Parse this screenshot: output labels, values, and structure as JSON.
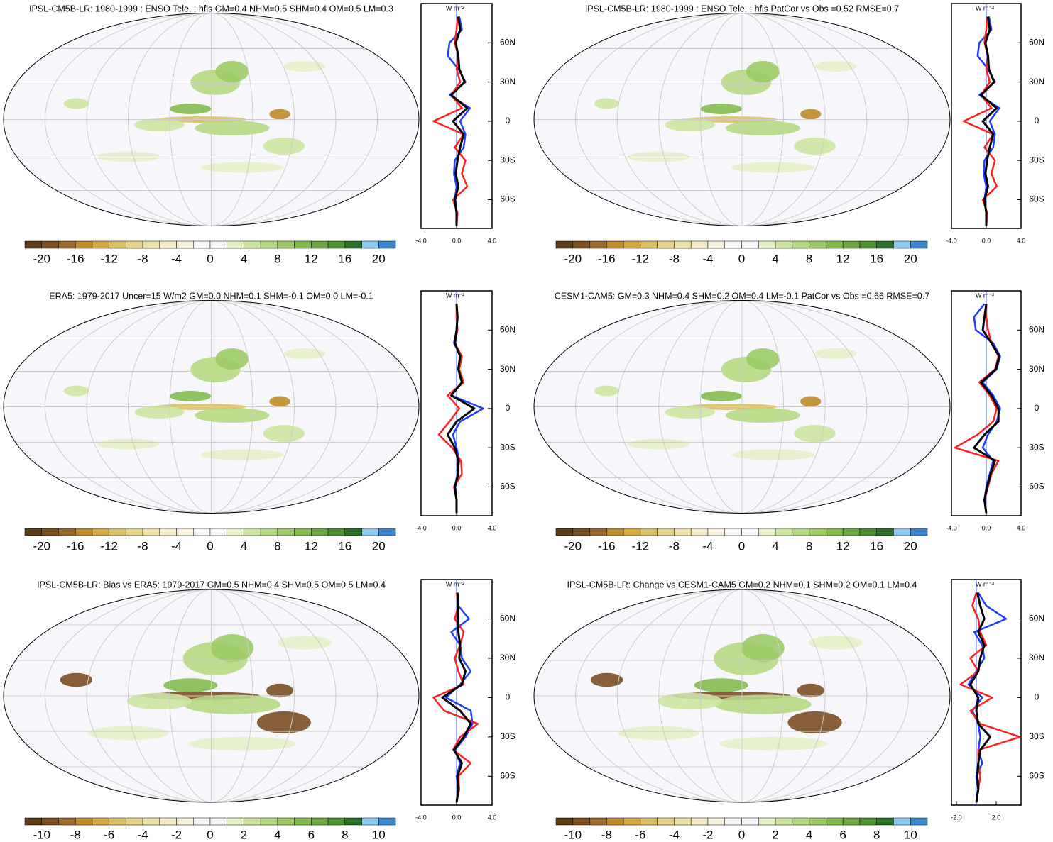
{
  "panels": [
    {
      "title": "IPSL-CM5B-LR: 1980-1999 : ENSO Tele. : hfls GM=0.4 NHM=0.5 SHM=0.4 OM=0.5 LM=0.3",
      "colorbar": {
        "colors": [
          "#5c3b17",
          "#7b4e22",
          "#9a6a2c",
          "#bf8b2b",
          "#d3a940",
          "#dcc066",
          "#e6d48c",
          "#ede2aa",
          "#f2ebc6",
          "#f5f1dd",
          "#f7f7fb",
          "#f7f7fb",
          "#e4f0c6",
          "#cde5a1",
          "#b5d882",
          "#9ccb66",
          "#83bb4f",
          "#69a740",
          "#4c9032",
          "#2d6e28",
          "#8ccbef",
          "#3a86cf"
        ],
        "lim": [
          -22,
          22
        ],
        "ticks": [
          -20,
          -16,
          -12,
          -8,
          -4,
          0,
          4,
          8,
          12,
          16,
          20
        ]
      },
      "zonal": {
        "unit": "W m⁻²",
        "xlim": [
          -4,
          4
        ],
        "xticks": [
          {
            "value": -4,
            "label": "-4.0"
          },
          {
            "value": 0,
            "label": "0.0"
          },
          {
            "value": 4,
            "label": "4.0"
          }
        ],
        "ylim": [
          -82,
          90
        ],
        "yticks": [
          {
            "value": -60,
            "label": "60S"
          },
          {
            "value": -30,
            "label": "30S"
          },
          {
            "value": 0,
            "label": "0"
          },
          {
            "value": 30,
            "label": "30N"
          },
          {
            "value": 60,
            "label": "60N"
          }
        ],
        "lat": [
          -80,
          -70,
          -60,
          -50,
          -40,
          -30,
          -20,
          -10,
          0,
          10,
          20,
          30,
          40,
          50,
          60,
          70,
          80
        ],
        "series": [
          {
            "color": "#1f3cff",
            "values": [
              0,
              0,
              -0.2,
              0,
              -0.3,
              -0.2,
              0.8,
              1.0,
              0.4,
              1.5,
              -0.8,
              1.0,
              0.2,
              -1.0,
              -0.8,
              0.6,
              0.3
            ]
          },
          {
            "color": "#ff2020",
            "values": [
              0,
              0.1,
              -0.4,
              1.2,
              0.6,
              1.0,
              -0.2,
              0.8,
              -2.6,
              0.6,
              -0.6,
              0.4,
              0,
              0.2,
              -0.2,
              0,
              0.1
            ]
          },
          {
            "color": "#000000",
            "values": [
              0,
              0,
              -0.2,
              0.2,
              -0.1,
              0.1,
              0.4,
              0.8,
              -0.4,
              1.2,
              -0.6,
              0.9,
              0.3,
              0.2,
              -0.1,
              0.4,
              0.2
            ]
          }
        ]
      }
    },
    {
      "title": "IPSL-CM5B-LR: 1980-1999 : ENSO Tele. : hfls PatCor vs Obs =0.52 RMSE=0.7",
      "colorbar": {
        "colors": [
          "#5c3b17",
          "#7b4e22",
          "#9a6a2c",
          "#bf8b2b",
          "#d3a940",
          "#dcc066",
          "#e6d48c",
          "#ede2aa",
          "#f2ebc6",
          "#f5f1dd",
          "#f7f7fb",
          "#f7f7fb",
          "#e4f0c6",
          "#cde5a1",
          "#b5d882",
          "#9ccb66",
          "#83bb4f",
          "#69a740",
          "#4c9032",
          "#2d6e28",
          "#8ccbef",
          "#3a86cf"
        ],
        "lim": [
          -22,
          22
        ],
        "ticks": [
          -20,
          -16,
          -12,
          -8,
          -4,
          0,
          4,
          8,
          12,
          16,
          20
        ]
      },
      "zonal": {
        "unit": "W m⁻²",
        "xlim": [
          -4,
          4
        ],
        "xticks": [
          {
            "value": -4,
            "label": "-4.0"
          },
          {
            "value": 0,
            "label": "0.0"
          },
          {
            "value": 4,
            "label": "4.0"
          }
        ],
        "ylim": [
          -82,
          90
        ],
        "yticks": [
          {
            "value": -60,
            "label": "60S"
          },
          {
            "value": -30,
            "label": "30S"
          },
          {
            "value": 0,
            "label": "0"
          },
          {
            "value": 30,
            "label": "30N"
          },
          {
            "value": 60,
            "label": "60N"
          }
        ],
        "lat": [
          -80,
          -70,
          -60,
          -50,
          -40,
          -30,
          -20,
          -10,
          0,
          10,
          20,
          30,
          40,
          50,
          60,
          70,
          80
        ],
        "series": [
          {
            "color": "#1f3cff",
            "values": [
              0,
              0,
              -0.2,
              0,
              -0.3,
              -0.2,
              0.8,
              1.0,
              0.4,
              1.5,
              -0.8,
              1.0,
              0.2,
              -1.0,
              -0.8,
              0.6,
              0.3
            ]
          },
          {
            "color": "#ff2020",
            "values": [
              0,
              0.1,
              -0.4,
              1.2,
              0.6,
              1.0,
              -0.2,
              0.8,
              -2.6,
              0.6,
              -0.6,
              0.4,
              0,
              0.2,
              -0.2,
              0,
              0.1
            ]
          },
          {
            "color": "#000000",
            "values": [
              0,
              0,
              -0.2,
              0.2,
              -0.1,
              0.1,
              0.4,
              0.8,
              -0.4,
              1.2,
              -0.6,
              0.9,
              0.3,
              0.2,
              -0.1,
              0.4,
              0.2
            ]
          }
        ]
      }
    },
    {
      "title": "ERA5: 1979-2017 Uncer=15 W/m2 GM=0.0 NHM=0.1 SHM=-0.1 OM=0.0 LM=-0.1",
      "colorbar": {
        "colors": [
          "#5c3b17",
          "#7b4e22",
          "#9a6a2c",
          "#bf8b2b",
          "#d3a940",
          "#dcc066",
          "#e6d48c",
          "#ede2aa",
          "#f2ebc6",
          "#f5f1dd",
          "#f7f7fb",
          "#f7f7fb",
          "#e4f0c6",
          "#cde5a1",
          "#b5d882",
          "#9ccb66",
          "#83bb4f",
          "#69a740",
          "#4c9032",
          "#2d6e28",
          "#8ccbef",
          "#3a86cf"
        ],
        "lim": [
          -22,
          22
        ],
        "ticks": [
          -20,
          -16,
          -12,
          -8,
          -4,
          0,
          4,
          8,
          12,
          16,
          20
        ]
      },
      "zonal": {
        "unit": "W m⁻²",
        "xlim": [
          -4,
          4
        ],
        "xticks": [
          {
            "value": -4,
            "label": "-4.0"
          },
          {
            "value": 0,
            "label": "0.0"
          },
          {
            "value": 4,
            "label": "4.0"
          }
        ],
        "ylim": [
          -82,
          90
        ],
        "yticks": [
          {
            "value": -60,
            "label": "60S"
          },
          {
            "value": -30,
            "label": "30S"
          },
          {
            "value": 0,
            "label": "0"
          },
          {
            "value": 30,
            "label": "30N"
          },
          {
            "value": 60,
            "label": "60N"
          }
        ],
        "lat": [
          -80,
          -70,
          -60,
          -50,
          -40,
          -30,
          -20,
          -10,
          0,
          10,
          20,
          30,
          40,
          50,
          60,
          70,
          80
        ],
        "series": [
          {
            "color": "#1f3cff",
            "values": [
              0,
              0,
              -0.2,
              0.1,
              0.3,
              0,
              -0.4,
              0.4,
              3.0,
              -0.6,
              0.6,
              0.2,
              0.5,
              -0.3,
              0,
              0.1,
              0
            ]
          },
          {
            "color": "#ff2020",
            "values": [
              0,
              0,
              -0.3,
              0.6,
              0.5,
              -0.5,
              -2.0,
              -0.8,
              0.3,
              -1.0,
              0.8,
              0.3,
              0.6,
              -0.2,
              0.1,
              0,
              0
            ]
          },
          {
            "color": "#000000",
            "values": [
              0,
              0,
              -0.2,
              0.2,
              0.2,
              -0.2,
              -1.0,
              0,
              2.0,
              -0.6,
              0.6,
              0.2,
              0.4,
              -0.2,
              0,
              0.1,
              0
            ]
          }
        ]
      }
    },
    {
      "title": "CESM1-CAM5: GM=0.3 NHM=0.4 SHM=0.2 OM=0.4 LM=-0.1 PatCor vs Obs =0.66 RMSE=0.7",
      "colorbar": {
        "colors": [
          "#5c3b17",
          "#7b4e22",
          "#9a6a2c",
          "#bf8b2b",
          "#d3a940",
          "#dcc066",
          "#e6d48c",
          "#ede2aa",
          "#f2ebc6",
          "#f5f1dd",
          "#f7f7fb",
          "#f7f7fb",
          "#e4f0c6",
          "#cde5a1",
          "#b5d882",
          "#9ccb66",
          "#83bb4f",
          "#69a740",
          "#4c9032",
          "#2d6e28",
          "#8ccbef",
          "#3a86cf"
        ],
        "lim": [
          -22,
          22
        ],
        "ticks": [
          -20,
          -16,
          -12,
          -8,
          -4,
          0,
          4,
          8,
          12,
          16,
          20
        ]
      },
      "zonal": {
        "unit": "W m⁻²",
        "xlim": [
          -4,
          4
        ],
        "xticks": [
          {
            "value": -4,
            "label": "-4.0"
          },
          {
            "value": 0,
            "label": "0.0"
          },
          {
            "value": 4,
            "label": "4.0"
          }
        ],
        "ylim": [
          -82,
          90
        ],
        "yticks": [
          {
            "value": -60,
            "label": "60S"
          },
          {
            "value": -30,
            "label": "30S"
          },
          {
            "value": 0,
            "label": "0"
          },
          {
            "value": 30,
            "label": "30N"
          },
          {
            "value": 60,
            "label": "60N"
          }
        ],
        "lat": [
          -80,
          -70,
          -60,
          -50,
          -40,
          -30,
          -20,
          -10,
          0,
          10,
          20,
          30,
          40,
          50,
          60,
          70,
          80
        ],
        "series": [
          {
            "color": "#1f3cff",
            "values": [
              0,
              -0.2,
              0,
              0.4,
              0.8,
              -0.4,
              0.2,
              1.2,
              1.6,
              0.8,
              -0.4,
              1.2,
              1.6,
              0.8,
              -1.2,
              -1.4,
              -0.2
            ]
          },
          {
            "color": "#ff2020",
            "values": [
              0,
              -0.2,
              0.2,
              0.6,
              1.4,
              -3.6,
              -1.0,
              0.8,
              1.2,
              0.4,
              -0.8,
              1.0,
              1.4,
              0.6,
              0.2,
              0,
              0
            ]
          },
          {
            "color": "#000000",
            "values": [
              0,
              -0.2,
              0.1,
              0.5,
              1.0,
              -1.4,
              -0.2,
              1.4,
              1.4,
              0.6,
              -0.6,
              1.1,
              1.5,
              0.6,
              -0.4,
              -0.2,
              0
            ]
          }
        ]
      }
    },
    {
      "title": "IPSL-CM5B-LR: Bias vs ERA5: 1979-2017 GM=0.5 NHM=0.4 SHM=0.5 OM=0.5 LM=0.4",
      "colorbar": {
        "colors": [
          "#5c3b17",
          "#7b4e22",
          "#9a6a2c",
          "#bf8b2b",
          "#d3a940",
          "#dcc066",
          "#e6d48c",
          "#ede2aa",
          "#f2ebc6",
          "#f5f1dd",
          "#f7f7fb",
          "#f7f7fb",
          "#e4f0c6",
          "#cde5a1",
          "#b5d882",
          "#9ccb66",
          "#83bb4f",
          "#69a740",
          "#4c9032",
          "#2d6e28",
          "#8ccbef",
          "#3a86cf"
        ],
        "lim": [
          -11,
          11
        ],
        "ticks": [
          -10,
          -8,
          -6,
          -4,
          -2,
          0,
          2,
          4,
          6,
          8,
          10
        ]
      },
      "zonal": {
        "unit": "W m⁻²",
        "xlim": [
          -4,
          4
        ],
        "xticks": [
          {
            "value": -4,
            "label": "-4.0"
          },
          {
            "value": 0,
            "label": "0.0"
          },
          {
            "value": 4,
            "label": "4.0"
          }
        ],
        "ylim": [
          -82,
          90
        ],
        "yticks": [
          {
            "value": -60,
            "label": "60S"
          },
          {
            "value": -30,
            "label": "30S"
          },
          {
            "value": 0,
            "label": "0"
          },
          {
            "value": 30,
            "label": "30N"
          },
          {
            "value": 60,
            "label": "60N"
          }
        ],
        "lat": [
          -80,
          -70,
          -60,
          -50,
          -40,
          -30,
          -20,
          -10,
          0,
          10,
          20,
          30,
          40,
          50,
          60,
          70,
          80
        ],
        "series": [
          {
            "color": "#1f3cff",
            "values": [
              0,
              0.2,
              0,
              0.4,
              -0.2,
              1.0,
              1.8,
              1.6,
              -1.2,
              0.4,
              1.6,
              0.6,
              0.4,
              -0.6,
              1.4,
              0.2,
              0.1
            ]
          },
          {
            "color": "#ff2020",
            "values": [
              0,
              0.3,
              0.2,
              1.6,
              -0.4,
              0.4,
              2.4,
              -1.4,
              -2.6,
              0.8,
              0.2,
              -0.2,
              0.4,
              0.8,
              -0.2,
              0.2,
              0
            ]
          },
          {
            "color": "#000000",
            "values": [
              0,
              0.2,
              0.1,
              0.6,
              -0.3,
              0.8,
              1.6,
              0.4,
              -1.6,
              0.6,
              1.0,
              0.3,
              0.4,
              0.2,
              0.2,
              0.2,
              0.1
            ]
          }
        ]
      }
    },
    {
      "title": "IPSL-CM5B-LR: Change vs CESM1-CAM5 GM=0.2 NHM=0.1 SHM=0.2 OM=0.1 LM=0.4",
      "colorbar": {
        "colors": [
          "#5c3b17",
          "#7b4e22",
          "#9a6a2c",
          "#bf8b2b",
          "#d3a940",
          "#dcc066",
          "#e6d48c",
          "#ede2aa",
          "#f2ebc6",
          "#f5f1dd",
          "#f7f7fb",
          "#f7f7fb",
          "#e4f0c6",
          "#cde5a1",
          "#b5d882",
          "#9ccb66",
          "#83bb4f",
          "#69a740",
          "#4c9032",
          "#2d6e28",
          "#8ccbef",
          "#3a86cf"
        ],
        "lim": [
          -11,
          11
        ],
        "ticks": [
          -10,
          -8,
          -6,
          -4,
          -2,
          0,
          2,
          4,
          6,
          8,
          10
        ]
      },
      "zonal": {
        "unit": "W m⁻²",
        "xlim": [
          -2.5,
          4.5
        ],
        "xticks": [
          {
            "value": -2,
            "label": "-2.0"
          },
          {
            "value": 2,
            "label": "2.0"
          }
        ],
        "ylim": [
          -82,
          90
        ],
        "yticks": [
          {
            "value": -60,
            "label": "60S"
          },
          {
            "value": -30,
            "label": "30S"
          },
          {
            "value": 0,
            "label": "0"
          },
          {
            "value": 30,
            "label": "30N"
          },
          {
            "value": 60,
            "label": "60N"
          }
        ],
        "lat": [
          -80,
          -70,
          -60,
          -50,
          -40,
          -30,
          -20,
          -10,
          0,
          10,
          20,
          30,
          40,
          50,
          60,
          70,
          80
        ],
        "series": [
          {
            "color": "#1f3cff",
            "values": [
              0,
              0.2,
              0,
              0.6,
              0.2,
              0.4,
              0.2,
              -0.4,
              0.6,
              -0.8,
              0,
              0.8,
              0.6,
              -0.2,
              3.0,
              1.0,
              0.2
            ]
          },
          {
            "color": "#ff2020",
            "values": [
              0,
              0.2,
              0.4,
              0.2,
              0.2,
              4.4,
              0.4,
              -0.6,
              1.6,
              -1.6,
              0.2,
              -0.6,
              1.0,
              0.4,
              0.2,
              -0.4,
              0
            ]
          },
          {
            "color": "#000000",
            "values": [
              0,
              0.2,
              0.1,
              0.2,
              0.4,
              1.4,
              0.2,
              0,
              0.2,
              -0.6,
              0.2,
              0.4,
              0.8,
              0.2,
              0.8,
              0.4,
              0.1
            ]
          }
        ]
      }
    }
  ]
}
